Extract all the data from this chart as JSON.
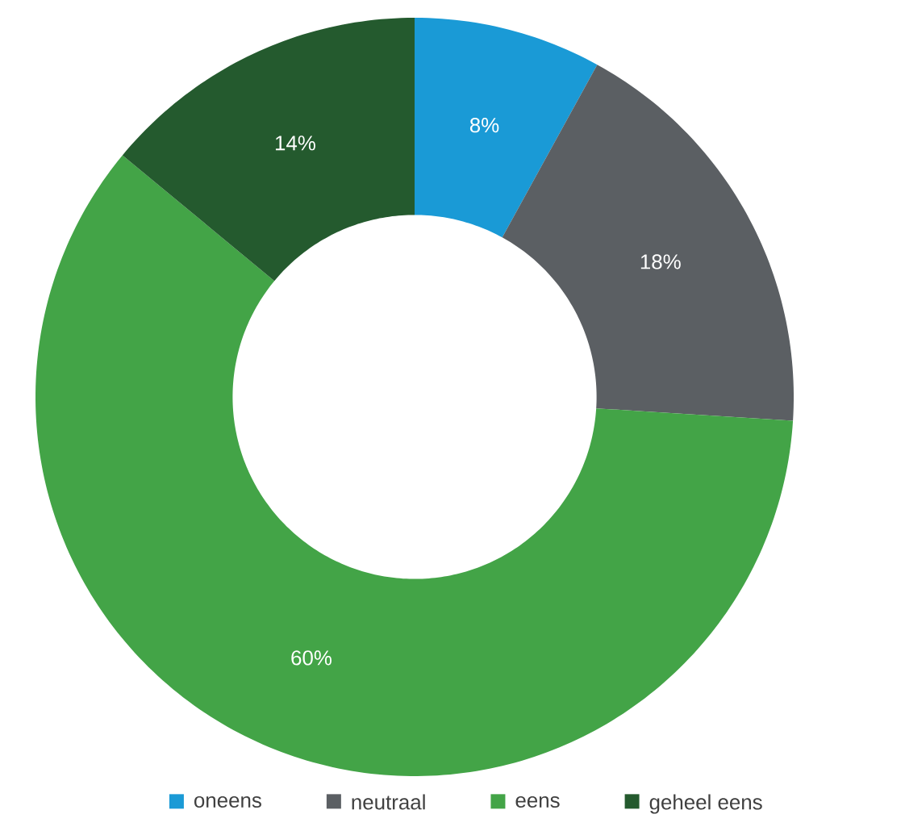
{
  "chart_data": {
    "type": "donut",
    "categories": [
      "oneens",
      "neutraal",
      "eens",
      "geheel eens"
    ],
    "values": [
      8,
      18,
      60,
      14
    ],
    "value_labels": [
      "8%",
      "18%",
      "60%",
      "14%"
    ],
    "colors": [
      "#1a9ad6",
      "#5b5f63",
      "#43a447",
      "#245a2e"
    ],
    "legend": "bottom"
  }
}
